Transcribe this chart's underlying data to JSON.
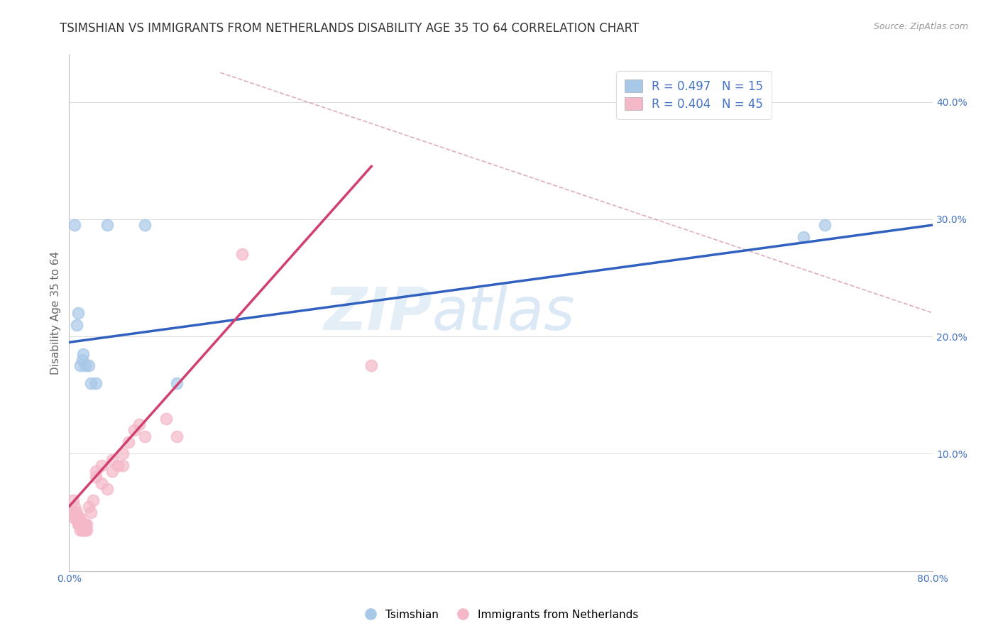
{
  "title": "TSIMSHIAN VS IMMIGRANTS FROM NETHERLANDS DISABILITY AGE 35 TO 64 CORRELATION CHART",
  "source_text": "Source: ZipAtlas.com",
  "ylabel": "Disability Age 35 to 64",
  "xlim": [
    0.0,
    0.8
  ],
  "ylim": [
    0.0,
    0.44
  ],
  "xticks": [
    0.0,
    0.1,
    0.2,
    0.3,
    0.4,
    0.5,
    0.6,
    0.7,
    0.8
  ],
  "yticks": [
    0.1,
    0.2,
    0.3,
    0.4
  ],
  "ytick_labels": [
    "10.0%",
    "20.0%",
    "30.0%",
    "40.0%"
  ],
  "xtick_labels": [
    "0.0%",
    "",
    "",
    "",
    "",
    "",
    "",
    "",
    "80.0%"
  ],
  "legend_r1": "R = 0.497   N = 15",
  "legend_r2": "R = 0.404   N = 45",
  "watermark_zip": "ZIP",
  "watermark_atlas": "atlas",
  "blue_color": "#a8c8e8",
  "pink_color": "#f4b8c8",
  "blue_line_color": "#3060c0",
  "pink_line_color": "#d04070",
  "ref_line_color": "#d8a0b0",
  "tick_color": "#4472c4",
  "grid_color": "#dddddd",
  "background_color": "#ffffff",
  "tsimshian_x": [
    0.005,
    0.007,
    0.008,
    0.01,
    0.012,
    0.013,
    0.015,
    0.018,
    0.02,
    0.025,
    0.035,
    0.07,
    0.1,
    0.68,
    0.7
  ],
  "tsimshian_y": [
    0.295,
    0.21,
    0.22,
    0.175,
    0.18,
    0.185,
    0.175,
    0.175,
    0.16,
    0.16,
    0.295,
    0.295,
    0.16,
    0.285,
    0.295
  ],
  "netherlands_x": [
    0.004,
    0.004,
    0.005,
    0.005,
    0.006,
    0.006,
    0.007,
    0.007,
    0.008,
    0.008,
    0.009,
    0.009,
    0.01,
    0.01,
    0.01,
    0.012,
    0.012,
    0.013,
    0.013,
    0.014,
    0.015,
    0.015,
    0.016,
    0.016,
    0.018,
    0.02,
    0.022,
    0.025,
    0.025,
    0.03,
    0.03,
    0.035,
    0.04,
    0.04,
    0.045,
    0.05,
    0.05,
    0.055,
    0.06,
    0.065,
    0.07,
    0.09,
    0.1,
    0.16,
    0.28
  ],
  "netherlands_y": [
    0.05,
    0.06,
    0.045,
    0.055,
    0.045,
    0.05,
    0.045,
    0.05,
    0.04,
    0.045,
    0.04,
    0.045,
    0.035,
    0.04,
    0.045,
    0.035,
    0.04,
    0.035,
    0.04,
    0.04,
    0.035,
    0.04,
    0.035,
    0.04,
    0.055,
    0.05,
    0.06,
    0.08,
    0.085,
    0.075,
    0.09,
    0.07,
    0.085,
    0.095,
    0.09,
    0.09,
    0.1,
    0.11,
    0.12,
    0.125,
    0.115,
    0.13,
    0.115,
    0.27,
    0.175
  ],
  "title_fontsize": 12,
  "axis_label_fontsize": 11,
  "tick_fontsize": 10
}
